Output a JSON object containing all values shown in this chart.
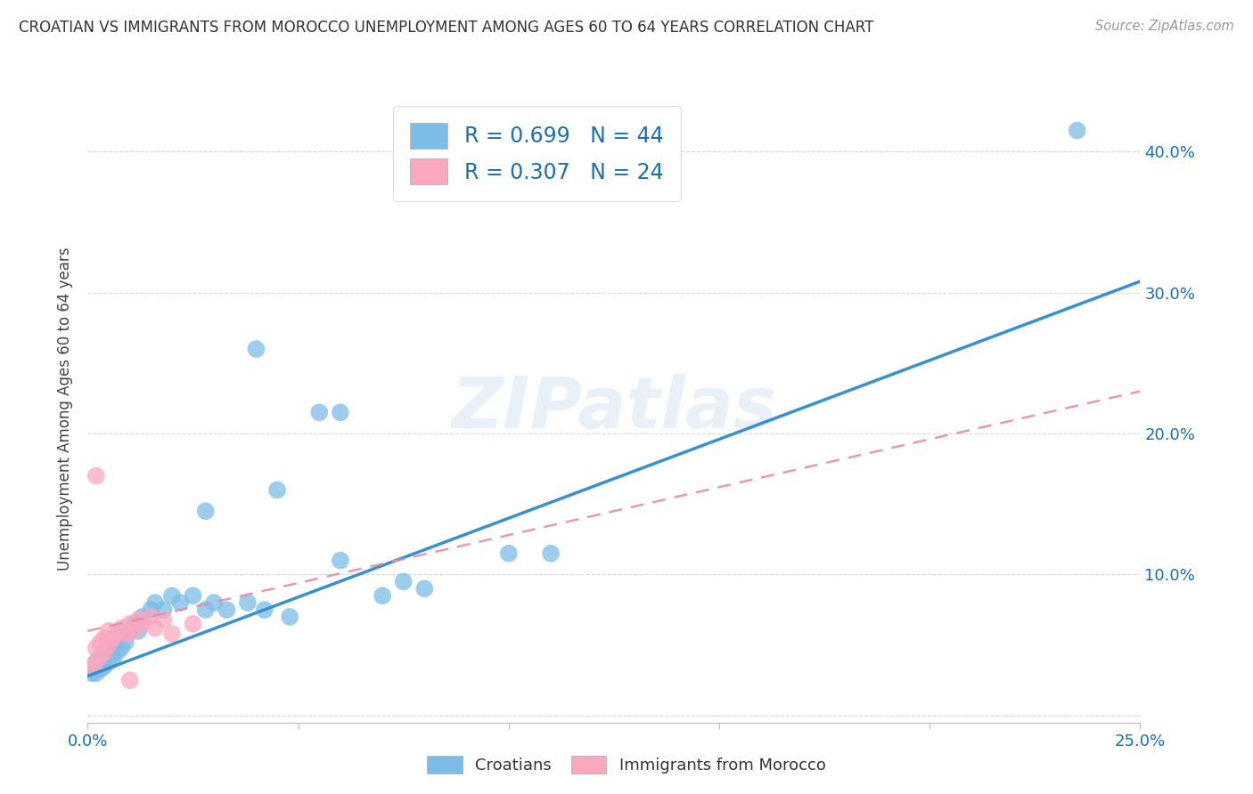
{
  "title": "CROATIAN VS IMMIGRANTS FROM MOROCCO UNEMPLOYMENT AMONG AGES 60 TO 64 YEARS CORRELATION CHART",
  "source": "Source: ZipAtlas.com",
  "ylabel": "Unemployment Among Ages 60 to 64 years",
  "xlim": [
    0.0,
    0.25
  ],
  "ylim": [
    -0.005,
    0.44
  ],
  "yticks": [
    0.0,
    0.1,
    0.2,
    0.3,
    0.4
  ],
  "ytick_labels": [
    "",
    "10.0%",
    "20.0%",
    "30.0%",
    "40.0%"
  ],
  "xticks": [
    0.0,
    0.05,
    0.1,
    0.15,
    0.2,
    0.25
  ],
  "watermark": "ZIPatlas",
  "legend_r1": "R = 0.699",
  "legend_n1": "N = 44",
  "legend_r2": "R = 0.307",
  "legend_n2": "N = 24",
  "croatian_color": "#7bbde8",
  "morocco_color": "#f9a8c0",
  "line_blue": "#3a8fd0",
  "line_blue_label": "#1a6faf",
  "line_pink": "#e090a8",
  "croatian_scatter": [
    [
      0.001,
      0.03
    ],
    [
      0.002,
      0.03
    ],
    [
      0.002,
      0.038
    ],
    [
      0.003,
      0.033
    ],
    [
      0.003,
      0.04
    ],
    [
      0.004,
      0.035
    ],
    [
      0.004,
      0.045
    ],
    [
      0.005,
      0.038
    ],
    [
      0.005,
      0.048
    ],
    [
      0.006,
      0.04
    ],
    [
      0.006,
      0.05
    ],
    [
      0.007,
      0.045
    ],
    [
      0.007,
      0.055
    ],
    [
      0.008,
      0.048
    ],
    [
      0.008,
      0.058
    ],
    [
      0.009,
      0.052
    ],
    [
      0.01,
      0.06
    ],
    [
      0.011,
      0.065
    ],
    [
      0.012,
      0.06
    ],
    [
      0.013,
      0.07
    ],
    [
      0.015,
      0.075
    ],
    [
      0.016,
      0.08
    ],
    [
      0.018,
      0.075
    ],
    [
      0.02,
      0.085
    ],
    [
      0.022,
      0.08
    ],
    [
      0.025,
      0.085
    ],
    [
      0.028,
      0.075
    ],
    [
      0.03,
      0.08
    ],
    [
      0.033,
      0.075
    ],
    [
      0.038,
      0.08
    ],
    [
      0.042,
      0.075
    ],
    [
      0.048,
      0.07
    ],
    [
      0.028,
      0.145
    ],
    [
      0.045,
      0.16
    ],
    [
      0.06,
      0.11
    ],
    [
      0.07,
      0.085
    ],
    [
      0.075,
      0.095
    ],
    [
      0.08,
      0.09
    ],
    [
      0.1,
      0.115
    ],
    [
      0.11,
      0.115
    ],
    [
      0.055,
      0.215
    ],
    [
      0.06,
      0.215
    ],
    [
      0.04,
      0.26
    ],
    [
      0.235,
      0.415
    ]
  ],
  "morocco_scatter": [
    [
      0.001,
      0.035
    ],
    [
      0.002,
      0.038
    ],
    [
      0.002,
      0.048
    ],
    [
      0.003,
      0.042
    ],
    [
      0.003,
      0.052
    ],
    [
      0.004,
      0.045
    ],
    [
      0.004,
      0.055
    ],
    [
      0.005,
      0.05
    ],
    [
      0.005,
      0.06
    ],
    [
      0.006,
      0.055
    ],
    [
      0.007,
      0.058
    ],
    [
      0.008,
      0.062
    ],
    [
      0.009,
      0.058
    ],
    [
      0.01,
      0.065
    ],
    [
      0.011,
      0.06
    ],
    [
      0.012,
      0.068
    ],
    [
      0.013,
      0.065
    ],
    [
      0.015,
      0.07
    ],
    [
      0.016,
      0.062
    ],
    [
      0.018,
      0.068
    ],
    [
      0.02,
      0.058
    ],
    [
      0.025,
      0.065
    ],
    [
      0.002,
      0.17
    ],
    [
      0.01,
      0.025
    ]
  ],
  "croatian_line": [
    [
      0.0,
      0.028
    ],
    [
      0.25,
      0.308
    ]
  ],
  "morocco_line": [
    [
      0.0,
      0.06
    ],
    [
      0.25,
      0.23
    ]
  ],
  "background_color": "#ffffff",
  "grid_color": "#cccccc"
}
